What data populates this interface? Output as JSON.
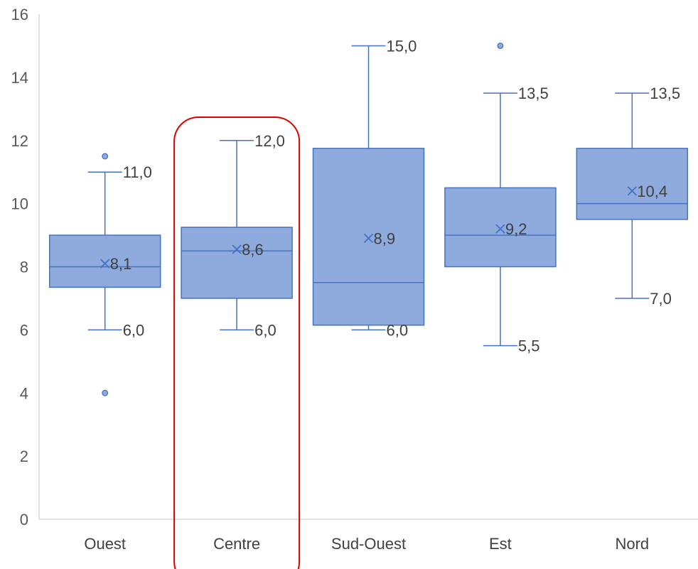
{
  "chart_data": {
    "type": "box",
    "y_ticks": [
      "0",
      "2",
      "4",
      "6",
      "8",
      "10",
      "12",
      "14",
      "16"
    ],
    "ylim": [
      0,
      16
    ],
    "grid": false,
    "legend": "none",
    "colors": {
      "box_fill": "#8faadc",
      "box_stroke": "#4472c4",
      "axis": "#d9d9d9",
      "highlight": "#e00000"
    },
    "highlight_category": "Centre",
    "categories": [
      "Ouest",
      "Centre",
      "Sud-Ouest",
      "Est",
      "Nord"
    ],
    "boxes": [
      {
        "category": "Ouest",
        "min": 6.0,
        "q1": 7.35,
        "median": 8.0,
        "q3": 9.0,
        "max": 11.0,
        "mean": 8.1,
        "outliers": [
          11.5,
          4.0
        ],
        "labels": {
          "max": "11,0",
          "min": "6,0",
          "mean": "8,1"
        }
      },
      {
        "category": "Centre",
        "min": 6.0,
        "q1": 7.0,
        "median": 8.5,
        "q3": 9.25,
        "max": 12.0,
        "mean": 8.55,
        "outliers": [],
        "labels": {
          "max": "12,0",
          "min": "6,0",
          "mean": "8,6"
        }
      },
      {
        "category": "Sud-Ouest",
        "min": 6.0,
        "q1": 6.15,
        "median": 7.5,
        "q3": 11.75,
        "max": 15.0,
        "mean": 8.9,
        "outliers": [],
        "labels": {
          "max": "15,0",
          "min": "6,0",
          "mean": "8,9"
        }
      },
      {
        "category": "Est",
        "min": 5.5,
        "q1": 8.0,
        "median": 9.0,
        "q3": 10.5,
        "max": 13.5,
        "mean": 9.2,
        "outliers": [
          15.0
        ],
        "labels": {
          "max": "13,5",
          "min": "5,5",
          "mean": "9,2"
        }
      },
      {
        "category": "Nord",
        "min": 7.0,
        "q1": 9.5,
        "median": 10.0,
        "q3": 11.75,
        "max": 13.5,
        "mean": 10.4,
        "outliers": [],
        "labels": {
          "max": "13,5",
          "min": "7,0",
          "mean": "10,4"
        }
      }
    ]
  }
}
